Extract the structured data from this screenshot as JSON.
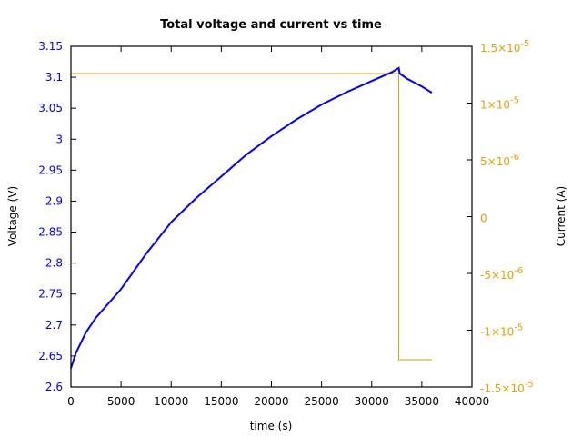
{
  "chart_data": {
    "type": "line",
    "title": "Total voltage and current vs time",
    "xlabel": "time (s)",
    "ylabel": "Voltage (V)",
    "y2label": "Current (A)",
    "xlim": [
      0,
      40000
    ],
    "ylim": [
      2.6,
      3.15
    ],
    "y2lim": [
      -1.5e-05,
      1.5e-05
    ],
    "grid": false,
    "legend": null,
    "x_ticks": [
      "0",
      "5000",
      "10000",
      "15000",
      "20000",
      "25000",
      "30000",
      "35000",
      "40000"
    ],
    "y_ticks": [
      "3.15",
      "3.1",
      "3.05",
      "3",
      "2.95",
      "2.9",
      "2.85",
      "2.8",
      "2.75",
      "2.7",
      "2.65",
      "2.6"
    ],
    "y2_ticks": [
      {
        "mant": "1.5×10",
        "exp": "-5",
        "value": 1.5e-05
      },
      {
        "mant": "1×10",
        "exp": "-5",
        "value": 1e-05
      },
      {
        "mant": "5×10",
        "exp": "-6",
        "value": 5e-06
      },
      {
        "mant": "0",
        "exp": "",
        "value": 0
      },
      {
        "mant": "-5×10",
        "exp": "-6",
        "value": -5e-06
      },
      {
        "mant": "-1×10",
        "exp": "-5",
        "value": -1e-05
      },
      {
        "mant": "-1.5×10",
        "exp": "-5",
        "value": -1.5e-05
      }
    ],
    "series": [
      {
        "name": "Voltage",
        "axis": "left",
        "color": "#0000ff",
        "x": [
          0,
          500,
          1500,
          2500,
          5000,
          7500,
          10000,
          12500,
          15000,
          17500,
          20000,
          22500,
          25000,
          27500,
          30000,
          32000,
          32700,
          32800,
          33500,
          35000,
          36000
        ],
        "y": [
          2.63,
          2.655,
          2.688,
          2.712,
          2.758,
          2.815,
          2.866,
          2.905,
          2.94,
          2.975,
          3.005,
          3.032,
          3.056,
          3.076,
          3.094,
          3.108,
          3.115,
          3.106,
          3.098,
          3.085,
          3.075
        ]
      },
      {
        "name": "Current",
        "axis": "right",
        "color": "#e69f00",
        "x": [
          0,
          32700,
          32700,
          36000
        ],
        "y": [
          1.26e-05,
          1.26e-05,
          -1.26e-05,
          -1.26e-05
        ]
      }
    ]
  },
  "colors": {
    "voltage": "#0000ff",
    "current": "#e69f00",
    "axis": "#000000"
  }
}
